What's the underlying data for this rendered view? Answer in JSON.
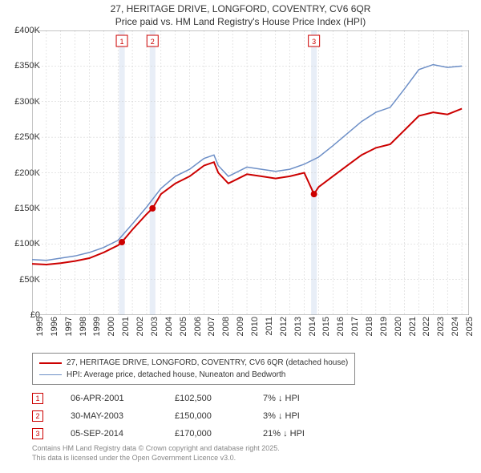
{
  "title": {
    "line1": "27, HERITAGE DRIVE, LONGFORD, COVENTRY, CV6 6QR",
    "line2": "Price paid vs. HM Land Registry's House Price Index (HPI)",
    "fontsize": 12,
    "color": "#333333"
  },
  "chart": {
    "type": "line",
    "background_color": "#ffffff",
    "grid_color": "#cccccc",
    "axis_color": "#888888",
    "xlim": [
      1995,
      2025.5
    ],
    "ylim": [
      0,
      400000
    ],
    "ytick_step": 50000,
    "ytick_labels": [
      "£0",
      "£50K",
      "£100K",
      "£150K",
      "£200K",
      "£250K",
      "£300K",
      "£350K",
      "£400K"
    ],
    "xtick_step": 1,
    "xtick_labels": [
      "1995",
      "1996",
      "1997",
      "1998",
      "1999",
      "2000",
      "2001",
      "2002",
      "2003",
      "2004",
      "2005",
      "2006",
      "2007",
      "2008",
      "2009",
      "2010",
      "2011",
      "2012",
      "2013",
      "2014",
      "2015",
      "2016",
      "2017",
      "2018",
      "2019",
      "2020",
      "2021",
      "2022",
      "2023",
      "2024",
      "2025"
    ],
    "sale_band_color": "#e8eef7",
    "sale_band_width_years": 0.4,
    "series": [
      {
        "name": "price_paid",
        "label": "27, HERITAGE DRIVE, LONGFORD, COVENTRY, CV6 6QR (detached house)",
        "color": "#cc0000",
        "width": 2,
        "data": [
          [
            1995,
            72000
          ],
          [
            1996,
            71000
          ],
          [
            1997,
            73000
          ],
          [
            1998,
            76000
          ],
          [
            1999,
            80000
          ],
          [
            2000,
            88000
          ],
          [
            2001,
            98000
          ],
          [
            2001.27,
            102500
          ],
          [
            2002,
            120000
          ],
          [
            2003,
            142000
          ],
          [
            2003.41,
            150000
          ],
          [
            2004,
            170000
          ],
          [
            2005,
            185000
          ],
          [
            2006,
            195000
          ],
          [
            2007,
            210000
          ],
          [
            2007.7,
            215000
          ],
          [
            2008,
            200000
          ],
          [
            2008.7,
            185000
          ],
          [
            2009,
            188000
          ],
          [
            2010,
            198000
          ],
          [
            2011,
            195000
          ],
          [
            2012,
            192000
          ],
          [
            2013,
            195000
          ],
          [
            2014,
            200000
          ],
          [
            2014.68,
            170000
          ],
          [
            2015,
            180000
          ],
          [
            2016,
            195000
          ],
          [
            2017,
            210000
          ],
          [
            2018,
            225000
          ],
          [
            2019,
            235000
          ],
          [
            2020,
            240000
          ],
          [
            2021,
            260000
          ],
          [
            2022,
            280000
          ],
          [
            2023,
            285000
          ],
          [
            2024,
            282000
          ],
          [
            2025,
            290000
          ]
        ]
      },
      {
        "name": "hpi",
        "label": "HPI: Average price, detached house, Nuneaton and Bedworth",
        "color": "#6d8fc7",
        "width": 1.5,
        "data": [
          [
            1995,
            78000
          ],
          [
            1996,
            77000
          ],
          [
            1997,
            80000
          ],
          [
            1998,
            83000
          ],
          [
            1999,
            88000
          ],
          [
            2000,
            95000
          ],
          [
            2001,
            105000
          ],
          [
            2002,
            128000
          ],
          [
            2003,
            152000
          ],
          [
            2004,
            178000
          ],
          [
            2005,
            195000
          ],
          [
            2006,
            205000
          ],
          [
            2007,
            220000
          ],
          [
            2007.7,
            225000
          ],
          [
            2008,
            210000
          ],
          [
            2008.7,
            195000
          ],
          [
            2009,
            198000
          ],
          [
            2010,
            208000
          ],
          [
            2011,
            205000
          ],
          [
            2012,
            202000
          ],
          [
            2013,
            205000
          ],
          [
            2014,
            212000
          ],
          [
            2015,
            222000
          ],
          [
            2016,
            238000
          ],
          [
            2017,
            255000
          ],
          [
            2018,
            272000
          ],
          [
            2019,
            285000
          ],
          [
            2020,
            292000
          ],
          [
            2021,
            318000
          ],
          [
            2022,
            345000
          ],
          [
            2023,
            352000
          ],
          [
            2024,
            348000
          ],
          [
            2025,
            350000
          ]
        ]
      }
    ],
    "sale_markers": [
      {
        "n": 1,
        "x": 2001.27,
        "y": 102500,
        "color": "#cc0000"
      },
      {
        "n": 2,
        "x": 2003.41,
        "y": 150000,
        "color": "#cc0000"
      },
      {
        "n": 3,
        "x": 2014.68,
        "y": 170000,
        "color": "#cc0000"
      }
    ],
    "marker_box_size": 14,
    "marker_box_bg": "#ffffff",
    "marker_dot_radius": 4
  },
  "legend": {
    "border_color": "#888888",
    "fontsize": 10
  },
  "sales_table": {
    "rows": [
      {
        "n": "1",
        "date": "06-APR-2001",
        "price": "£102,500",
        "pct": "7% ↓ HPI"
      },
      {
        "n": "2",
        "date": "30-MAY-2003",
        "price": "£150,000",
        "pct": "3% ↓ HPI"
      },
      {
        "n": "3",
        "date": "05-SEP-2014",
        "price": "£170,000",
        "pct": "21% ↓ HPI"
      }
    ],
    "marker_color": "#cc0000",
    "fontsize": 11
  },
  "attribution": {
    "line1": "Contains HM Land Registry data © Crown copyright and database right 2025.",
    "line2": "This data is licensed under the Open Government Licence v3.0.",
    "color": "#888888",
    "fontsize": 9
  }
}
